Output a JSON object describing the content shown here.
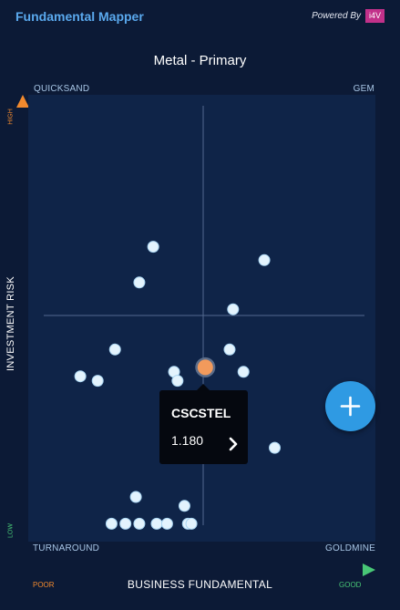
{
  "header": {
    "app_title": "Fundamental Mapper",
    "powered_by": "Powered By",
    "logo_text": "i4V"
  },
  "subtitle": "Metal - Primary",
  "quadrants": {
    "top_left": "QUICKSAND",
    "top_right": "GEM",
    "bottom_left": "TURNAROUND",
    "bottom_right": "GOLDMINE"
  },
  "y_axis": {
    "title": "INVESTMENT RISK",
    "high": "HIGH",
    "low": "LOW"
  },
  "x_axis": {
    "title": "BUSINESS FUNDAMENTAL",
    "poor": "POOR",
    "good": "GOOD"
  },
  "tooltip": {
    "name": "CSCSTEL",
    "value": "1.180"
  },
  "colors": {
    "background": "#0c1a36",
    "plot_background": "#0f2448",
    "point": "#e3f3fd",
    "highlight_point": "#f29a5c",
    "accent_title": "#5aa9ee",
    "fab": "#2f9ae3",
    "axis_high": "#f28a2e",
    "axis_low": "#48c776"
  },
  "fab_icon": "plus-icon",
  "chevron_icon": "chevron-right-icon",
  "chart_data": {
    "type": "scatter",
    "xlabel": "BUSINESS FUNDAMENTAL",
    "ylabel": "INVESTMENT RISK",
    "xlim": [
      0,
      100
    ],
    "ylim": [
      0,
      100
    ],
    "grid": false,
    "points": [
      {
        "x": 36,
        "y": 66
      },
      {
        "x": 32,
        "y": 58
      },
      {
        "x": 68,
        "y": 63
      },
      {
        "x": 59,
        "y": 52
      },
      {
        "x": 25,
        "y": 43
      },
      {
        "x": 58,
        "y": 43
      },
      {
        "x": 15,
        "y": 37
      },
      {
        "x": 20,
        "y": 36
      },
      {
        "x": 42,
        "y": 38
      },
      {
        "x": 62,
        "y": 38
      },
      {
        "x": 43,
        "y": 36
      },
      {
        "x": 71,
        "y": 21
      },
      {
        "x": 31,
        "y": 10
      },
      {
        "x": 45,
        "y": 8
      },
      {
        "x": 24,
        "y": 4
      },
      {
        "x": 28,
        "y": 4
      },
      {
        "x": 32,
        "y": 4
      },
      {
        "x": 37,
        "y": 4
      },
      {
        "x": 40,
        "y": 4
      },
      {
        "x": 46,
        "y": 4
      },
      {
        "x": 47,
        "y": 4
      },
      {
        "x": 51,
        "y": 39,
        "highlight": true,
        "label": "CSCSTEL"
      }
    ]
  }
}
